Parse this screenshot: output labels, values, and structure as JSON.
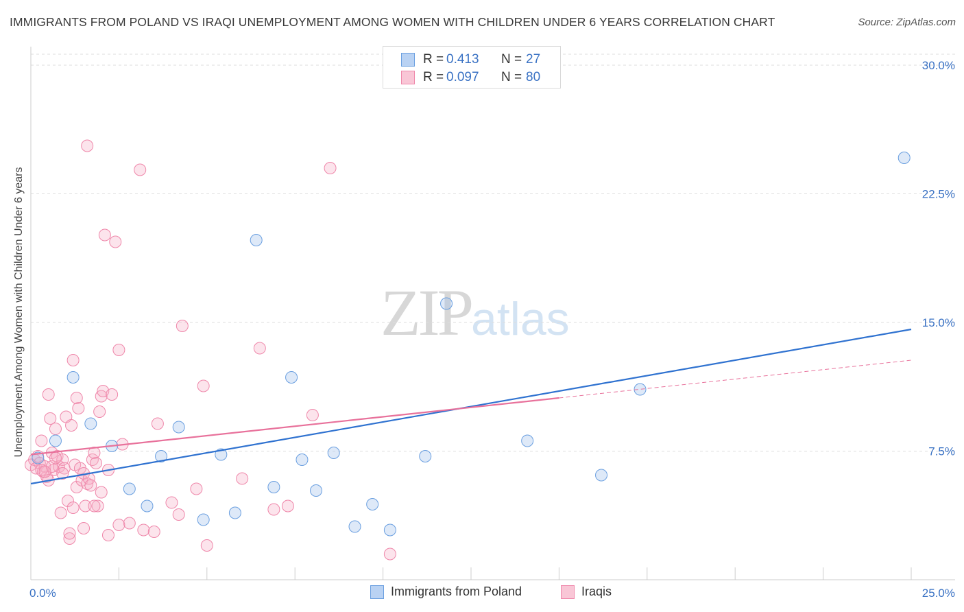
{
  "title": "IMMIGRANTS FROM POLAND VS IRAQI UNEMPLOYMENT AMONG WOMEN WITH CHILDREN UNDER 6 YEARS CORRELATION CHART",
  "source": "Source: ZipAtlas.com",
  "watermark": {
    "zip": "ZIP",
    "atlas": "atlas"
  },
  "legend": {
    "r_label": "R =",
    "n_label": "N =",
    "entries": [
      {
        "r": "0.413",
        "n": "27"
      },
      {
        "r": "0.097",
        "n": "80"
      }
    ]
  },
  "chart_data": {
    "type": "scatter",
    "xlabel": "",
    "ylabel": "Unemployment Among Women with Children Under 6 years",
    "xlim": [
      0,
      25
    ],
    "ylim": [
      0,
      31
    ],
    "x_tick_labels": [
      "0.0%",
      "25.0%"
    ],
    "y_ticks": [
      7.5,
      15.0,
      22.5,
      30.0
    ],
    "y_tick_labels": [
      "7.5%",
      "15.0%",
      "22.5%",
      "30.0%"
    ],
    "grid": true,
    "colors": {
      "poland": "#6a9fe0",
      "iraqi": "#ef87aa",
      "poland_line": "#2f72d0",
      "iraqi_line": "#e8719b"
    },
    "series": [
      {
        "name": "Immigrants from Poland",
        "points": [
          [
            0.2,
            7.1
          ],
          [
            0.7,
            8.1
          ],
          [
            1.2,
            11.8
          ],
          [
            1.7,
            9.1
          ],
          [
            2.3,
            7.8
          ],
          [
            2.8,
            5.3
          ],
          [
            3.3,
            4.3
          ],
          [
            3.7,
            7.2
          ],
          [
            4.2,
            8.9
          ],
          [
            4.9,
            3.5
          ],
          [
            5.4,
            7.3
          ],
          [
            5.8,
            3.9
          ],
          [
            6.4,
            19.8
          ],
          [
            6.9,
            5.4
          ],
          [
            7.4,
            11.8
          ],
          [
            7.7,
            7.0
          ],
          [
            8.1,
            5.2
          ],
          [
            8.6,
            7.4
          ],
          [
            9.2,
            3.1
          ],
          [
            9.7,
            4.4
          ],
          [
            10.2,
            2.9
          ],
          [
            11.2,
            7.2
          ],
          [
            11.8,
            16.1
          ],
          [
            14.1,
            8.1
          ],
          [
            16.2,
            6.1
          ],
          [
            17.3,
            11.1
          ],
          [
            24.8,
            24.6
          ]
        ],
        "trend": {
          "x": [
            0,
            25
          ],
          "y": [
            5.6,
            14.6
          ]
        }
      },
      {
        "name": "Iraqis",
        "points": [
          [
            0.0,
            6.7
          ],
          [
            0.1,
            7.0
          ],
          [
            0.15,
            6.5
          ],
          [
            0.2,
            7.2
          ],
          [
            0.25,
            6.8
          ],
          [
            0.3,
            8.1
          ],
          [
            0.35,
            6.3
          ],
          [
            0.4,
            6.6
          ],
          [
            0.45,
            6.0
          ],
          [
            0.5,
            5.8
          ],
          [
            0.55,
            9.4
          ],
          [
            0.6,
            7.4
          ],
          [
            0.65,
            6.4
          ],
          [
            0.7,
            8.8
          ],
          [
            0.75,
            7.2
          ],
          [
            0.8,
            6.6
          ],
          [
            0.85,
            3.9
          ],
          [
            0.9,
            7.0
          ],
          [
            0.95,
            6.5
          ],
          [
            1.0,
            9.5
          ],
          [
            1.05,
            4.6
          ],
          [
            1.1,
            2.4
          ],
          [
            1.15,
            9.0
          ],
          [
            1.2,
            12.8
          ],
          [
            1.25,
            6.7
          ],
          [
            1.3,
            5.4
          ],
          [
            1.35,
            10.0
          ],
          [
            1.4,
            6.5
          ],
          [
            1.45,
            5.8
          ],
          [
            1.5,
            6.2
          ],
          [
            1.55,
            4.3
          ],
          [
            1.6,
            5.6
          ],
          [
            1.65,
            5.9
          ],
          [
            1.7,
            5.5
          ],
          [
            1.75,
            7.0
          ],
          [
            1.8,
            7.4
          ],
          [
            1.85,
            6.8
          ],
          [
            1.9,
            4.3
          ],
          [
            1.95,
            9.8
          ],
          [
            2.0,
            10.7
          ],
          [
            2.05,
            11.0
          ],
          [
            2.1,
            20.1
          ],
          [
            2.2,
            6.4
          ],
          [
            2.3,
            10.8
          ],
          [
            2.4,
            19.7
          ],
          [
            2.5,
            13.4
          ],
          [
            2.6,
            7.9
          ],
          [
            2.8,
            3.3
          ],
          [
            3.1,
            23.9
          ],
          [
            3.2,
            2.9
          ],
          [
            3.5,
            2.8
          ],
          [
            3.6,
            9.1
          ],
          [
            4.0,
            4.5
          ],
          [
            4.2,
            3.8
          ],
          [
            4.3,
            14.8
          ],
          [
            4.7,
            5.3
          ],
          [
            4.9,
            11.3
          ],
          [
            5.0,
            2.0
          ],
          [
            6.0,
            5.9
          ],
          [
            6.5,
            13.5
          ],
          [
            6.9,
            4.1
          ],
          [
            7.3,
            4.3
          ],
          [
            8.0,
            9.6
          ],
          [
            8.5,
            24.0
          ],
          [
            10.2,
            1.5
          ],
          [
            1.6,
            25.3
          ],
          [
            0.5,
            10.8
          ],
          [
            0.3,
            6.4
          ],
          [
            0.6,
            6.6
          ],
          [
            1.1,
            2.7
          ],
          [
            1.5,
            3.0
          ],
          [
            1.8,
            4.3
          ],
          [
            2.2,
            2.6
          ],
          [
            2.5,
            3.2
          ],
          [
            1.2,
            4.2
          ],
          [
            1.3,
            10.6
          ],
          [
            0.9,
            6.2
          ],
          [
            0.4,
            6.3
          ],
          [
            0.7,
            7.1
          ],
          [
            2.0,
            5.1
          ]
        ],
        "trend": {
          "x": [
            0,
            15
          ],
          "y": [
            7.3,
            10.6
          ]
        },
        "trend_extension": {
          "x": [
            15,
            25
          ],
          "y": [
            10.6,
            12.8
          ]
        }
      }
    ]
  },
  "bottom_legend": [
    {
      "label": "Immigrants from Poland"
    },
    {
      "label": "Iraqis"
    }
  ]
}
